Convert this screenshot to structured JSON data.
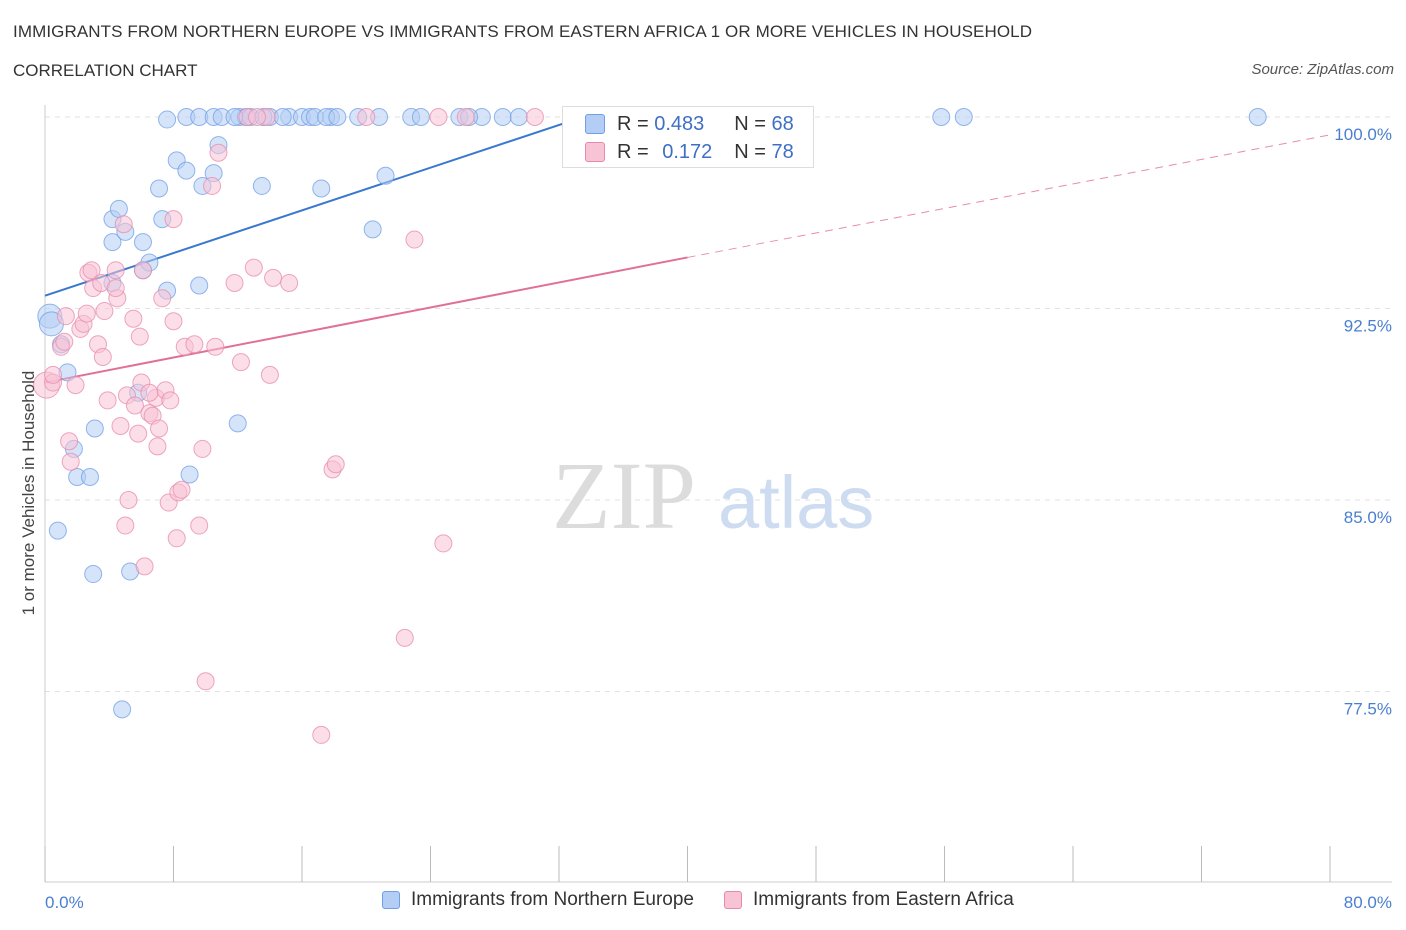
{
  "title": "IMMIGRANTS FROM NORTHERN EUROPE VS IMMIGRANTS FROM EASTERN AFRICA 1 OR MORE VEHICLES IN HOUSEHOLD",
  "subtitle": "CORRELATION CHART",
  "source": "Source: ZipAtlas.com",
  "watermark": {
    "zip": "ZIP",
    "atlas": "atlas"
  },
  "colors": {
    "blue": "#6f9fe6",
    "blue_fill": "#b4cdf4",
    "pink": "#e889ab",
    "pink_fill": "#f7c3d5",
    "blue_line": "#3a78cf",
    "pink_line": "#e07098",
    "tick": "#4a7fd0"
  },
  "stats": {
    "blue": {
      "r_label": "R =",
      "r": "0.483",
      "n_label": "N =",
      "n": "68"
    },
    "pink": {
      "r_label": "R =",
      "r": "0.172",
      "n_label": "N =",
      "n": "78"
    }
  },
  "legend": {
    "blue": "Immigrants from Northern Europe",
    "pink": "Immigrants from Eastern Africa"
  },
  "chart_data": {
    "type": "scatter",
    "title": "IMMIGRANTS FROM NORTHERN EUROPE VS IMMIGRANTS FROM EASTERN AFRICA 1 OR MORE VEHICLES IN HOUSEHOLD",
    "xlabel": "",
    "ylabel": "1 or more Vehicles in Household",
    "xlim": [
      0,
      80
    ],
    "ylim": [
      70.0,
      101.5
    ],
    "x_tick_labels": {
      "min": "0.0%",
      "max": "80.0%"
    },
    "y_ticks": [
      {
        "value": 77.5,
        "label": "77.5%"
      },
      {
        "value": 85.0,
        "label": "85.0%"
      },
      {
        "value": 92.5,
        "label": "92.5%"
      },
      {
        "value": 100.0,
        "label": "100.0%"
      }
    ],
    "grid": true,
    "series": [
      {
        "name": "Immigrants from Northern Europe",
        "color": "#6f9fe6",
        "trend": {
          "x0": 0,
          "y0": 93.0,
          "x1": 33.5,
          "y1": 100.0
        },
        "points": [
          [
            0.3,
            92.2
          ],
          [
            0.4,
            91.9
          ],
          [
            1.0,
            91.1
          ],
          [
            1.4,
            90.0
          ],
          [
            0.8,
            83.8
          ],
          [
            1.8,
            87.0
          ],
          [
            2.0,
            85.9
          ],
          [
            2.8,
            85.9
          ],
          [
            3.0,
            82.1
          ],
          [
            3.1,
            87.8
          ],
          [
            4.2,
            93.5
          ],
          [
            4.2,
            95.1
          ],
          [
            4.2,
            96.0
          ],
          [
            4.6,
            96.4
          ],
          [
            5.0,
            95.5
          ],
          [
            5.3,
            82.2
          ],
          [
            6.1,
            95.1
          ],
          [
            6.1,
            94.0
          ],
          [
            6.5,
            94.3
          ],
          [
            7.1,
            97.2
          ],
          [
            7.3,
            96.0
          ],
          [
            7.6,
            93.2
          ],
          [
            8.2,
            98.3
          ],
          [
            8.8,
            97.9
          ],
          [
            9.6,
            93.4
          ],
          [
            9.8,
            97.3
          ],
          [
            10.5,
            97.8
          ],
          [
            10.8,
            98.9
          ],
          [
            12.0,
            88.0
          ],
          [
            12.1,
            100.0
          ],
          [
            12.5,
            100.0
          ],
          [
            13.5,
            97.3
          ],
          [
            14.0,
            100.0
          ],
          [
            15.2,
            100.0
          ],
          [
            16.0,
            100.0
          ],
          [
            16.5,
            100.0
          ],
          [
            17.2,
            97.2
          ],
          [
            17.8,
            100.0
          ],
          [
            19.5,
            100.0
          ],
          [
            20.4,
            95.6
          ],
          [
            20.8,
            100.0
          ],
          [
            21.2,
            97.7
          ],
          [
            25.8,
            100.0
          ],
          [
            27.2,
            100.0
          ],
          [
            28.5,
            100.0
          ],
          [
            33.5,
            100.0
          ],
          [
            55.8,
            100.0
          ],
          [
            57.2,
            100.0
          ],
          [
            75.5,
            100.0
          ],
          [
            7.6,
            99.9
          ],
          [
            8.8,
            100.0
          ],
          [
            9.6,
            100.0
          ],
          [
            10.5,
            100.0
          ],
          [
            11.0,
            100.0
          ],
          [
            11.8,
            100.0
          ],
          [
            12.8,
            100.0
          ],
          [
            13.6,
            100.0
          ],
          [
            14.8,
            100.0
          ],
          [
            16.8,
            100.0
          ],
          [
            17.5,
            100.0
          ],
          [
            18.2,
            100.0
          ],
          [
            22.8,
            100.0
          ],
          [
            23.4,
            100.0
          ],
          [
            26.4,
            100.0
          ],
          [
            29.5,
            100.0
          ],
          [
            5.8,
            89.2
          ],
          [
            9.0,
            86.0
          ],
          [
            4.8,
            76.8
          ]
        ]
      },
      {
        "name": "Immigrants from Eastern Africa",
        "color": "#e889ab",
        "trend": {
          "x0": 0,
          "y0": 89.6,
          "x1": 40.0,
          "y1": 94.5,
          "dash_to": {
            "x": 80.0,
            "y": 99.3
          }
        },
        "points": [
          [
            0.1,
            89.5
          ],
          [
            0.5,
            89.6
          ],
          [
            0.5,
            89.9
          ],
          [
            1.0,
            91.0
          ],
          [
            1.2,
            91.2
          ],
          [
            1.3,
            92.2
          ],
          [
            1.5,
            87.3
          ],
          [
            1.6,
            86.5
          ],
          [
            1.9,
            89.5
          ],
          [
            2.2,
            91.7
          ],
          [
            2.4,
            91.9
          ],
          [
            2.6,
            92.3
          ],
          [
            2.7,
            93.9
          ],
          [
            2.9,
            94.0
          ],
          [
            3.0,
            93.3
          ],
          [
            3.3,
            91.1
          ],
          [
            3.5,
            93.5
          ],
          [
            3.6,
            90.6
          ],
          [
            3.7,
            92.4
          ],
          [
            3.9,
            88.9
          ],
          [
            4.4,
            94.0
          ],
          [
            4.5,
            92.9
          ],
          [
            4.7,
            87.9
          ],
          [
            4.9,
            95.8
          ],
          [
            5.0,
            84.0
          ],
          [
            5.1,
            89.1
          ],
          [
            5.2,
            85.0
          ],
          [
            5.5,
            92.1
          ],
          [
            5.6,
            88.7
          ],
          [
            5.8,
            87.6
          ],
          [
            5.9,
            91.4
          ],
          [
            6.0,
            89.6
          ],
          [
            6.1,
            94.0
          ],
          [
            6.2,
            82.4
          ],
          [
            6.5,
            88.4
          ],
          [
            6.7,
            88.3
          ],
          [
            6.9,
            89.0
          ],
          [
            7.0,
            87.1
          ],
          [
            7.1,
            87.8
          ],
          [
            7.3,
            92.9
          ],
          [
            7.5,
            89.3
          ],
          [
            7.7,
            84.9
          ],
          [
            7.8,
            88.9
          ],
          [
            8.0,
            92.0
          ],
          [
            8.2,
            83.5
          ],
          [
            8.3,
            85.3
          ],
          [
            8.5,
            85.4
          ],
          [
            8.7,
            91.0
          ],
          [
            9.3,
            91.1
          ],
          [
            9.6,
            84.0
          ],
          [
            9.8,
            87.0
          ],
          [
            10.0,
            77.9
          ],
          [
            10.4,
            97.3
          ],
          [
            10.6,
            91.0
          ],
          [
            10.8,
            98.6
          ],
          [
            11.8,
            93.5
          ],
          [
            12.2,
            90.4
          ],
          [
            13.0,
            94.1
          ],
          [
            13.8,
            100.0
          ],
          [
            14.0,
            89.9
          ],
          [
            14.2,
            93.7
          ],
          [
            15.2,
            93.5
          ],
          [
            17.2,
            75.8
          ],
          [
            17.9,
            86.2
          ],
          [
            18.1,
            86.4
          ],
          [
            20.0,
            100.0
          ],
          [
            22.4,
            79.6
          ],
          [
            23.0,
            95.2
          ],
          [
            24.5,
            100.0
          ],
          [
            24.8,
            83.3
          ],
          [
            26.2,
            100.0
          ],
          [
            30.5,
            100.0
          ],
          [
            33.3,
            100.0
          ],
          [
            4.4,
            93.3
          ],
          [
            8.0,
            96.0
          ],
          [
            12.6,
            100.0
          ],
          [
            13.2,
            100.0
          ],
          [
            6.5,
            89.2
          ]
        ]
      }
    ]
  }
}
